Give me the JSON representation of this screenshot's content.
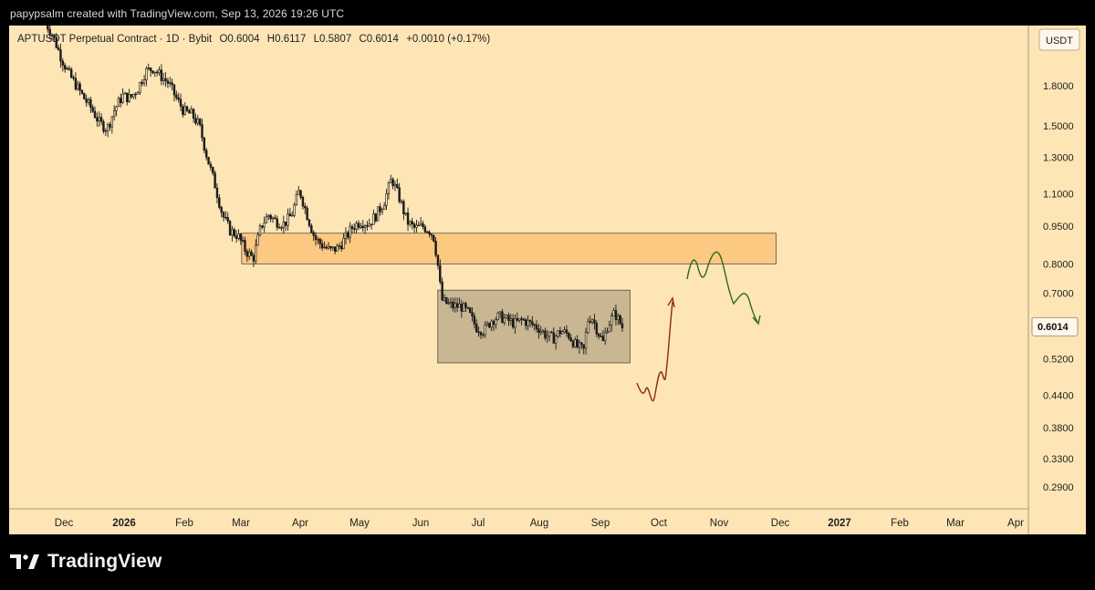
{
  "header": {
    "attribution": "papypsalm created with TradingView.com, Sep 13, 2026 19:26 UTC"
  },
  "footer": {
    "brand": "TradingView"
  },
  "chart_data": {
    "type": "candlestick",
    "legend": {
      "symbol": "APTUSDT Perpetual Contract · 1D · Bybit",
      "open_label": "O",
      "open": "0.6004",
      "high_label": "H",
      "high": "0.6117",
      "low_label": "L",
      "low": "0.5807",
      "close_label": "C",
      "close": "0.6014",
      "change": "+0.0010 (+0.17%)"
    },
    "currency": "USDT",
    "y_scale": "log",
    "ylim": [
      0.26,
      2.45
    ],
    "y_ticks": [
      "1.8000",
      "1.5000",
      "1.3000",
      "1.1000",
      "0.9500",
      "0.8000",
      "0.7000",
      "0.6000",
      "0.5200",
      "0.4400",
      "0.3800",
      "0.3300",
      "0.2900"
    ],
    "x_ticks": [
      "Dec",
      "2026",
      "Feb",
      "Mar",
      "Apr",
      "May",
      "Jun",
      "Jul",
      "Aug",
      "Sep",
      "Oct",
      "Nov",
      "Dec",
      "2027",
      "Feb",
      "Mar",
      "Apr"
    ],
    "last_price": "0.6014",
    "colors": {
      "background": "#fde5b5",
      "candle": "#1a1a1a",
      "resistance_zone": "#fcc780",
      "range_zone": "#bfae8d",
      "bullish_arrow": "#8b2a1e",
      "bearish_arrow": "#2e6b14"
    },
    "price_path": [
      [
        0.0,
        2.4
      ],
      [
        0.01,
        2.25
      ],
      [
        0.02,
        2.05
      ],
      [
        0.03,
        1.9
      ],
      [
        0.04,
        1.8
      ],
      [
        0.05,
        1.7
      ],
      [
        0.06,
        1.62
      ],
      [
        0.07,
        1.52
      ],
      [
        0.08,
        1.48
      ],
      [
        0.09,
        1.62
      ],
      [
        0.1,
        1.72
      ],
      [
        0.11,
        1.7
      ],
      [
        0.12,
        1.78
      ],
      [
        0.13,
        1.92
      ],
      [
        0.14,
        1.95
      ],
      [
        0.15,
        1.88
      ],
      [
        0.16,
        1.82
      ],
      [
        0.17,
        1.7
      ],
      [
        0.18,
        1.6
      ],
      [
        0.19,
        1.58
      ],
      [
        0.2,
        1.5
      ],
      [
        0.21,
        1.3
      ],
      [
        0.22,
        1.15
      ],
      [
        0.23,
        1.0
      ],
      [
        0.24,
        0.93
      ],
      [
        0.25,
        0.91
      ],
      [
        0.26,
        0.85
      ],
      [
        0.27,
        0.82
      ],
      [
        0.28,
        0.95
      ],
      [
        0.29,
        1.0
      ],
      [
        0.3,
        0.97
      ],
      [
        0.31,
        0.96
      ],
      [
        0.32,
        1.0
      ],
      [
        0.33,
        1.12
      ],
      [
        0.34,
        1.0
      ],
      [
        0.35,
        0.9
      ],
      [
        0.36,
        0.87
      ],
      [
        0.37,
        0.85
      ],
      [
        0.38,
        0.86
      ],
      [
        0.39,
        0.9
      ],
      [
        0.4,
        0.95
      ],
      [
        0.41,
        0.97
      ],
      [
        0.42,
        0.96
      ],
      [
        0.43,
        1.0
      ],
      [
        0.44,
        1.06
      ],
      [
        0.45,
        1.18
      ],
      [
        0.46,
        1.08
      ],
      [
        0.47,
        0.97
      ],
      [
        0.48,
        0.94
      ],
      [
        0.49,
        0.95
      ],
      [
        0.5,
        0.93
      ],
      [
        0.505,
        0.9
      ],
      [
        0.51,
        0.8
      ],
      [
        0.515,
        0.68
      ],
      [
        0.52,
        0.67
      ],
      [
        0.53,
        0.66
      ],
      [
        0.54,
        0.66
      ],
      [
        0.55,
        0.64
      ],
      [
        0.56,
        0.6
      ],
      [
        0.57,
        0.59
      ],
      [
        0.58,
        0.62
      ],
      [
        0.59,
        0.63
      ],
      [
        0.6,
        0.62
      ],
      [
        0.61,
        0.61
      ],
      [
        0.62,
        0.62
      ],
      [
        0.63,
        0.61
      ],
      [
        0.64,
        0.6
      ],
      [
        0.65,
        0.58
      ],
      [
        0.66,
        0.57
      ],
      [
        0.67,
        0.59
      ],
      [
        0.68,
        0.58
      ],
      [
        0.69,
        0.55
      ],
      [
        0.7,
        0.54
      ],
      [
        0.705,
        0.62
      ],
      [
        0.71,
        0.63
      ],
      [
        0.72,
        0.58
      ],
      [
        0.725,
        0.56
      ],
      [
        0.73,
        0.6
      ],
      [
        0.74,
        0.64
      ],
      [
        0.75,
        0.6
      ]
    ],
    "zones": [
      {
        "name": "resistance-zone",
        "x0": 0.255,
        "x1": 0.95,
        "y_low": 0.8,
        "y_high": 0.92
      },
      {
        "name": "range-zone",
        "x0": 0.51,
        "x1": 0.76,
        "y_low": 0.51,
        "y_high": 0.71
      }
    ]
  }
}
